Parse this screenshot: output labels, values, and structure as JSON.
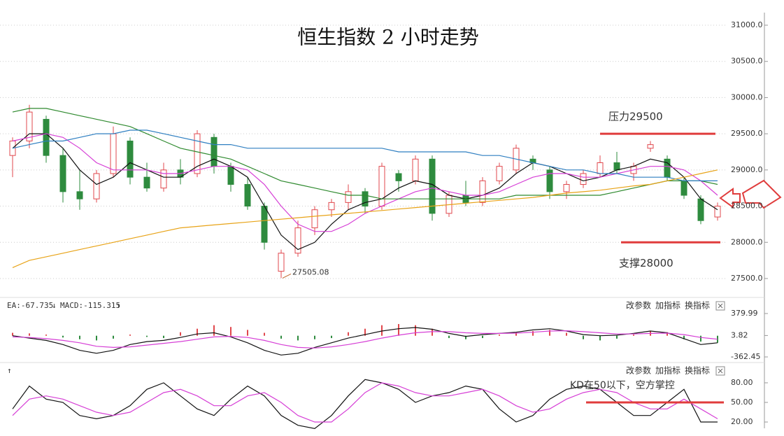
{
  "chart_data": [
    {
      "type": "candlestick",
      "title": "恒生指数 2 小时走势",
      "open": [
        29200,
        29400,
        29700,
        29200,
        28700,
        28600,
        28950,
        29400,
        28900,
        28750,
        29000,
        28950,
        29450,
        29050,
        28800,
        28500,
        27600,
        27850,
        28200,
        28450,
        28550,
        28700,
        28500,
        28950,
        28850,
        29150,
        28400,
        28650,
        28550,
        28850,
        29000,
        29150,
        29000,
        28700,
        28800,
        28950,
        29100,
        28950,
        29300,
        29150,
        28850,
        28600,
        28350
      ],
      "high": [
        29450,
        29900,
        29750,
        29300,
        29000,
        29000,
        29600,
        29450,
        29100,
        29100,
        29150,
        29550,
        29500,
        29100,
        28900,
        28550,
        27900,
        28300,
        28500,
        28600,
        28800,
        28750,
        29100,
        29000,
        29200,
        29200,
        28700,
        28850,
        28900,
        29100,
        29350,
        29200,
        29050,
        28850,
        29000,
        29200,
        29250,
        29100,
        29400,
        29200,
        28900,
        28650,
        28550
      ],
      "low": [
        28900,
        29300,
        29100,
        28550,
        28450,
        28550,
        28900,
        28800,
        28700,
        28700,
        28800,
        28900,
        28950,
        28700,
        28450,
        27900,
        27505.08,
        27800,
        28100,
        28350,
        28450,
        28400,
        28450,
        28700,
        28800,
        28300,
        28350,
        28500,
        28500,
        28800,
        28950,
        29000,
        28600,
        28600,
        28750,
        28900,
        28950,
        28850,
        29250,
        28850,
        28600,
        28250,
        28300
      ],
      "close": [
        29400,
        29800,
        29200,
        28700,
        28600,
        28950,
        29500,
        28900,
        28750,
        29000,
        28900,
        29500,
        29050,
        28800,
        28500,
        28000,
        27850,
        28200,
        28450,
        28550,
        28700,
        28500,
        29050,
        28850,
        29150,
        28400,
        28650,
        28550,
        28850,
        29050,
        29300,
        29100,
        28700,
        28800,
        28950,
        29100,
        29000,
        29050,
        29350,
        28900,
        28650,
        28300,
        28500
      ],
      "up_color": "#e0474c",
      "down_color": "#2e8b3e",
      "series": [
        {
          "color": "#111111",
          "values": [
            29300,
            29500,
            29500,
            29300,
            29000,
            28800,
            28900,
            29100,
            29000,
            28900,
            28900,
            29050,
            29150,
            29050,
            28900,
            28500,
            28100,
            27900,
            28000,
            28250,
            28450,
            28550,
            28600,
            28750,
            28850,
            28800,
            28650,
            28600,
            28650,
            28750,
            28950,
            29100,
            29050,
            28950,
            28850,
            28900,
            29000,
            29050,
            29150,
            29100,
            28900,
            28600,
            28450
          ]
        },
        {
          "color": "#d63fd6",
          "values": [
            29400,
            29450,
            29500,
            29450,
            29300,
            29100,
            29000,
            29000,
            29000,
            28950,
            28950,
            29000,
            29050,
            29050,
            29000,
            28800,
            28500,
            28250,
            28150,
            28150,
            28250,
            28400,
            28500,
            28600,
            28700,
            28750,
            28700,
            28650,
            28650,
            28700,
            28800,
            28900,
            28950,
            28950,
            28900,
            28900,
            28950,
            29000,
            29050,
            29050,
            29000,
            28850,
            28650
          ]
        },
        {
          "color": "#2f8a2f",
          "values": [
            29800,
            29850,
            29850,
            29800,
            29750,
            29700,
            29650,
            29600,
            29500,
            29400,
            29300,
            29250,
            29200,
            29150,
            29050,
            28950,
            28850,
            28800,
            28750,
            28700,
            28650,
            28650,
            28600,
            28600,
            28600,
            28600,
            28600,
            28600,
            28600,
            28600,
            28650,
            28650,
            28650,
            28650,
            28650,
            28650,
            28700,
            28750,
            28800,
            28850,
            28850,
            28850,
            28800
          ]
        },
        {
          "color": "#2f7fc1",
          "values": [
            29300,
            29350,
            29400,
            29400,
            29450,
            29500,
            29500,
            29550,
            29550,
            29500,
            29450,
            29400,
            29350,
            29350,
            29300,
            29300,
            29300,
            29300,
            29300,
            29300,
            29300,
            29300,
            29300,
            29250,
            29250,
            29250,
            29250,
            29250,
            29200,
            29200,
            29150,
            29100,
            29050,
            29000,
            29000,
            28950,
            28950,
            28900,
            28900,
            28900,
            28850,
            28850,
            28850
          ]
        },
        {
          "color": "#e8a317",
          "values": [
            27650,
            27750,
            27800,
            27850,
            27900,
            27950,
            28000,
            28050,
            28100,
            28150,
            28200,
            28220,
            28240,
            28260,
            28280,
            28300,
            28320,
            28340,
            28360,
            28380,
            28400,
            28420,
            28440,
            28460,
            28480,
            28500,
            28520,
            28540,
            28560,
            28580,
            28600,
            28620,
            28650,
            28680,
            28700,
            28720,
            28750,
            28780,
            28800,
            28850,
            28900,
            28950,
            29000
          ]
        }
      ],
      "ylim": [
        27400,
        31150
      ],
      "yticks": [
        {
          "value": 27500,
          "label": "27500.0"
        },
        {
          "value": 28000,
          "label": "28000.0"
        },
        {
          "value": 28500,
          "label": "28500.0"
        },
        {
          "value": 29000,
          "label": "29000.0"
        },
        {
          "value": 29500,
          "label": "29500.0"
        },
        {
          "value": 30000,
          "label": "30000.0"
        },
        {
          "value": 30500,
          "label": "30500.0"
        },
        {
          "value": 31000,
          "label": "31000.0"
        }
      ],
      "grid": true,
      "annotations": [
        {
          "text": "压力29500",
          "value": 29500,
          "color": "#e03c3c"
        },
        {
          "text": "支撑28000",
          "value": 28000,
          "color": "#e03c3c"
        }
      ]
    },
    {
      "type": "macd",
      "header": [
        "EA:-67.735",
        "↓",
        "MACD:-115.315",
        "↑"
      ],
      "toolbar": [
        "改参数",
        "加指标",
        "换指标"
      ],
      "values": [
        50,
        40,
        20,
        -30,
        -60,
        -80,
        -50,
        20,
        -20,
        -40,
        60,
        120,
        180,
        150,
        100,
        50,
        -50,
        -80,
        -60,
        -40,
        60,
        120,
        180,
        200,
        180,
        120,
        -40,
        -60,
        -40,
        20,
        60,
        80,
        100,
        50,
        -60,
        -80,
        -50,
        20,
        80,
        60,
        -60,
        -100,
        -120
      ],
      "up_color": "#e0474c",
      "down_color": "#2e8b3e",
      "series": [
        {
          "color": "#111111",
          "values": [
            0,
            -40,
            -80,
            -150,
            -250,
            -300,
            -250,
            -150,
            -100,
            -80,
            -30,
            30,
            50,
            -20,
            -120,
            -250,
            -330,
            -300,
            -200,
            -120,
            -40,
            20,
            80,
            120,
            140,
            110,
            40,
            -10,
            20,
            40,
            60,
            100,
            120,
            80,
            20,
            0,
            10,
            40,
            80,
            50,
            -50,
            -150,
            -120
          ]
        },
        {
          "color": "#d63fd6",
          "values": [
            -20,
            -30,
            -50,
            -80,
            -120,
            -180,
            -200,
            -190,
            -160,
            -130,
            -100,
            -60,
            -20,
            -10,
            -30,
            -80,
            -150,
            -200,
            -210,
            -190,
            -150,
            -100,
            -40,
            10,
            50,
            70,
            70,
            50,
            40,
            40,
            45,
            60,
            80,
            85,
            70,
            50,
            30,
            30,
            40,
            45,
            20,
            -30,
            -60
          ]
        }
      ],
      "ylim": [
        -458,
        619
      ],
      "yticks": [
        379.99,
        3.82,
        -362.45
      ]
    },
    {
      "type": "kd",
      "header": [
        "↑"
      ],
      "toolbar": [
        "改参数",
        "加指标",
        "换指标"
      ],
      "series": [
        {
          "color": "#111111",
          "values": [
            40,
            75,
            55,
            50,
            30,
            25,
            30,
            45,
            70,
            80,
            60,
            40,
            30,
            55,
            75,
            60,
            30,
            15,
            10,
            30,
            60,
            85,
            80,
            70,
            50,
            60,
            65,
            75,
            70,
            40,
            20,
            30,
            55,
            70,
            75,
            70,
            50,
            30,
            30,
            50,
            70,
            20,
            20
          ]
        },
        {
          "color": "#d63fd6",
          "values": [
            30,
            55,
            60,
            55,
            45,
            35,
            30,
            35,
            50,
            65,
            70,
            60,
            45,
            45,
            60,
            65,
            50,
            30,
            20,
            20,
            40,
            65,
            80,
            75,
            65,
            60,
            60,
            65,
            70,
            60,
            45,
            35,
            40,
            55,
            65,
            70,
            65,
            50,
            40,
            40,
            55,
            40,
            25
          ]
        }
      ],
      "ylim": [
        0,
        100
      ],
      "yticks": [
        {
          "value": 20,
          "label": "20.00"
        },
        {
          "value": 50,
          "label": "50.00"
        },
        {
          "value": 80,
          "label": "80.00"
        }
      ],
      "annotations": [
        {
          "text": "KD在50以下，空方掌控",
          "value": 50,
          "color": "#e03c3c"
        }
      ]
    }
  ]
}
